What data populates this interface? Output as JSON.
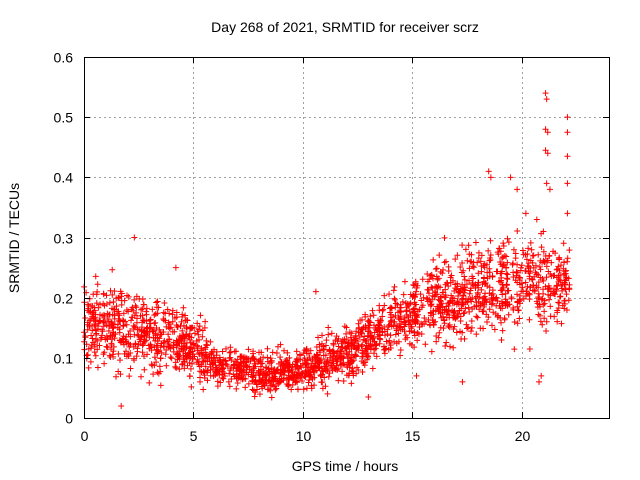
{
  "chart_data": {
    "type": "scatter",
    "title": "Day 268 of 2021, SRMTID for receiver scrz",
    "xlabel": "GPS time / hours",
    "ylabel": "SRMTID / TECUs",
    "xlim": [
      0,
      24
    ],
    "ylim": [
      0,
      0.6
    ],
    "xticks": [
      0,
      5,
      10,
      15,
      20
    ],
    "yticks": [
      0,
      0.1,
      0.2,
      0.3,
      0.4,
      0.5,
      0.6
    ],
    "ytick_labels": [
      "0",
      "0.1",
      "0.2",
      "0.3",
      "0.4",
      "0.5",
      "0.6"
    ],
    "grid": true,
    "marker": "+",
    "color": "#ff0000",
    "trend": [
      {
        "x": 0.0,
        "y": 0.16,
        "spread": 0.06
      },
      {
        "x": 1.0,
        "y": 0.15,
        "spread": 0.06
      },
      {
        "x": 2.0,
        "y": 0.15,
        "spread": 0.06
      },
      {
        "x": 3.0,
        "y": 0.13,
        "spread": 0.05
      },
      {
        "x": 4.0,
        "y": 0.13,
        "spread": 0.05
      },
      {
        "x": 5.0,
        "y": 0.12,
        "spread": 0.05
      },
      {
        "x": 6.0,
        "y": 0.09,
        "spread": 0.035
      },
      {
        "x": 7.0,
        "y": 0.085,
        "spread": 0.03
      },
      {
        "x": 8.0,
        "y": 0.075,
        "spread": 0.03
      },
      {
        "x": 9.0,
        "y": 0.075,
        "spread": 0.03
      },
      {
        "x": 10.0,
        "y": 0.085,
        "spread": 0.03
      },
      {
        "x": 11.0,
        "y": 0.095,
        "spread": 0.035
      },
      {
        "x": 12.0,
        "y": 0.11,
        "spread": 0.04
      },
      {
        "x": 13.0,
        "y": 0.13,
        "spread": 0.045
      },
      {
        "x": 14.0,
        "y": 0.15,
        "spread": 0.05
      },
      {
        "x": 15.0,
        "y": 0.18,
        "spread": 0.05
      },
      {
        "x": 16.0,
        "y": 0.19,
        "spread": 0.06
      },
      {
        "x": 17.0,
        "y": 0.2,
        "spread": 0.065
      },
      {
        "x": 18.0,
        "y": 0.21,
        "spread": 0.07
      },
      {
        "x": 19.0,
        "y": 0.22,
        "spread": 0.08
      },
      {
        "x": 20.0,
        "y": 0.22,
        "spread": 0.08
      },
      {
        "x": 21.0,
        "y": 0.22,
        "spread": 0.08
      },
      {
        "x": 22.2,
        "y": 0.22,
        "spread": 0.05
      }
    ],
    "points": [
      {
        "x": 2.3,
        "y": 0.3
      },
      {
        "x": 1.7,
        "y": 0.02
      },
      {
        "x": 4.2,
        "y": 0.25
      },
      {
        "x": 10.6,
        "y": 0.21
      },
      {
        "x": 13.0,
        "y": 0.035
      },
      {
        "x": 18.5,
        "y": 0.41
      },
      {
        "x": 18.6,
        "y": 0.4
      },
      {
        "x": 19.5,
        "y": 0.4
      },
      {
        "x": 19.8,
        "y": 0.38
      },
      {
        "x": 21.1,
        "y": 0.54
      },
      {
        "x": 21.15,
        "y": 0.53
      },
      {
        "x": 21.1,
        "y": 0.48
      },
      {
        "x": 21.2,
        "y": 0.475
      },
      {
        "x": 21.1,
        "y": 0.445
      },
      {
        "x": 21.2,
        "y": 0.44
      },
      {
        "x": 21.15,
        "y": 0.39
      },
      {
        "x": 21.3,
        "y": 0.38
      },
      {
        "x": 22.1,
        "y": 0.5
      },
      {
        "x": 22.1,
        "y": 0.475
      },
      {
        "x": 22.1,
        "y": 0.435
      },
      {
        "x": 22.1,
        "y": 0.39
      },
      {
        "x": 22.1,
        "y": 0.34
      },
      {
        "x": 20.8,
        "y": 0.06
      },
      {
        "x": 20.9,
        "y": 0.07
      },
      {
        "x": 17.3,
        "y": 0.06
      },
      {
        "x": 15.2,
        "y": 0.07
      },
      {
        "x": 20.2,
        "y": 0.34
      },
      {
        "x": 20.7,
        "y": 0.33
      },
      {
        "x": 21.0,
        "y": 0.31
      }
    ]
  }
}
